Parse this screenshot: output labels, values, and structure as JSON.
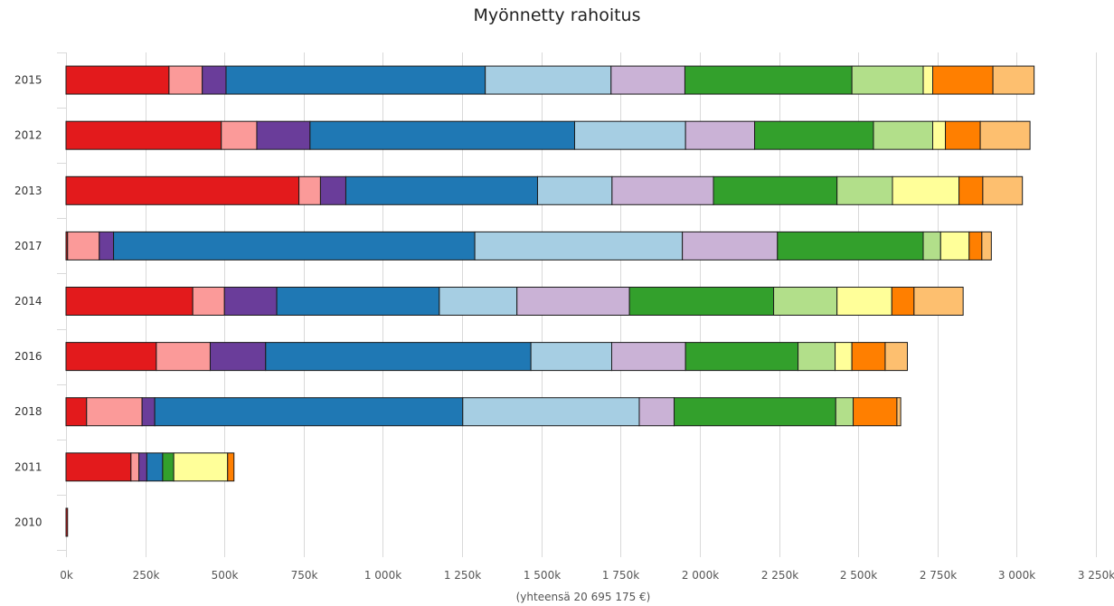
{
  "chart_data": {
    "type": "bar",
    "orientation": "horizontal",
    "stacked": true,
    "title": "Myönnetty rahoitus",
    "xlabel": "(yhteensä 20 695 175 €)",
    "ylabel": "",
    "xlim": [
      0,
      3250000
    ],
    "x_ticks": [
      0,
      250000,
      500000,
      750000,
      1000000,
      1250000,
      1500000,
      1750000,
      2000000,
      2250000,
      2500000,
      2750000,
      3000000,
      3250000
    ],
    "x_tick_labels": [
      "0k",
      "250k",
      "500k",
      "750k",
      "1 000k",
      "1 250k",
      "1 500k",
      "1 750k",
      "2 000k",
      "2 250k",
      "2 500k",
      "2 750k",
      "3 000k",
      "3 250k"
    ],
    "grid": true,
    "legend": "none",
    "categories": [
      "2015",
      "2012",
      "2013",
      "2017",
      "2014",
      "2016",
      "2018",
      "2011",
      "2010"
    ],
    "series": [
      {
        "color": "#e31a1c",
        "values": [
          325000,
          490000,
          735000,
          5000,
          400000,
          285000,
          65000,
          205000,
          5000
        ]
      },
      {
        "color": "#fb9a99",
        "values": [
          105000,
          112000,
          68000,
          100000,
          100000,
          170000,
          175000,
          25000,
          0
        ]
      },
      {
        "color": "#6a3d9a",
        "values": [
          75000,
          168000,
          80000,
          45000,
          165000,
          175000,
          40000,
          25000,
          0
        ]
      },
      {
        "color": "#1f78b4",
        "values": [
          818000,
          835000,
          605000,
          1140000,
          513000,
          837000,
          972000,
          50000,
          0
        ]
      },
      {
        "color": "#a6cee3",
        "values": [
          397000,
          350000,
          235000,
          655000,
          245000,
          255000,
          557000,
          0,
          0
        ]
      },
      {
        "color": "#cab2d6",
        "values": [
          233000,
          218000,
          320000,
          300000,
          355000,
          233000,
          110000,
          0,
          0
        ]
      },
      {
        "color": "#33a02c",
        "values": [
          527000,
          375000,
          390000,
          460000,
          455000,
          355000,
          510000,
          35000,
          0
        ]
      },
      {
        "color": "#b2df8a",
        "values": [
          225000,
          187000,
          175000,
          55000,
          200000,
          117000,
          55000,
          0,
          0
        ]
      },
      {
        "color": "#ffff99",
        "values": [
          30000,
          40000,
          210000,
          90000,
          173000,
          53000,
          0,
          170000,
          0
        ]
      },
      {
        "color": "#ff7f00",
        "values": [
          190000,
          110000,
          75000,
          40000,
          70000,
          105000,
          138000,
          20000,
          0
        ]
      },
      {
        "color": "#fdbf6f",
        "values": [
          130000,
          157000,
          125000,
          30000,
          155000,
          70000,
          12000,
          0,
          0
        ]
      }
    ]
  }
}
